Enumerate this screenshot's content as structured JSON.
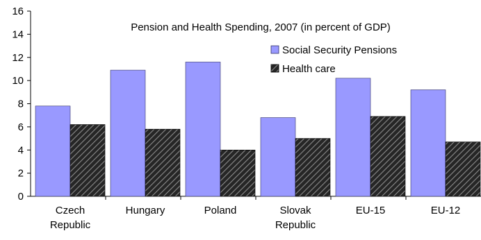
{
  "chart_data": {
    "type": "bar",
    "title": "Pension and Health Spending, 2007 (in percent of GDP)",
    "xlabel": "",
    "ylabel": "",
    "ylim": [
      0,
      16
    ],
    "yticks": [
      0,
      2,
      4,
      6,
      8,
      10,
      12,
      14,
      16
    ],
    "categories": [
      [
        "Czech",
        "Republic"
      ],
      [
        "Hungary"
      ],
      [
        "Poland"
      ],
      [
        "Slovak",
        "Republic"
      ],
      [
        "EU-15"
      ],
      [
        "EU-12"
      ]
    ],
    "series": [
      {
        "name": "Social Security Pensions",
        "values": [
          7.8,
          10.9,
          11.6,
          6.8,
          10.2,
          9.2
        ]
      },
      {
        "name": "Health care",
        "values": [
          6.2,
          5.8,
          4.0,
          5.0,
          6.9,
          4.7
        ]
      }
    ],
    "grid": false,
    "legend": "top-right",
    "colors": {
      "pensions_fill": "#9999ff",
      "pensions_stroke": "#333366",
      "health_fill": "#262626",
      "health_stripe": "#8c8c8c",
      "axis": "#000000"
    }
  }
}
